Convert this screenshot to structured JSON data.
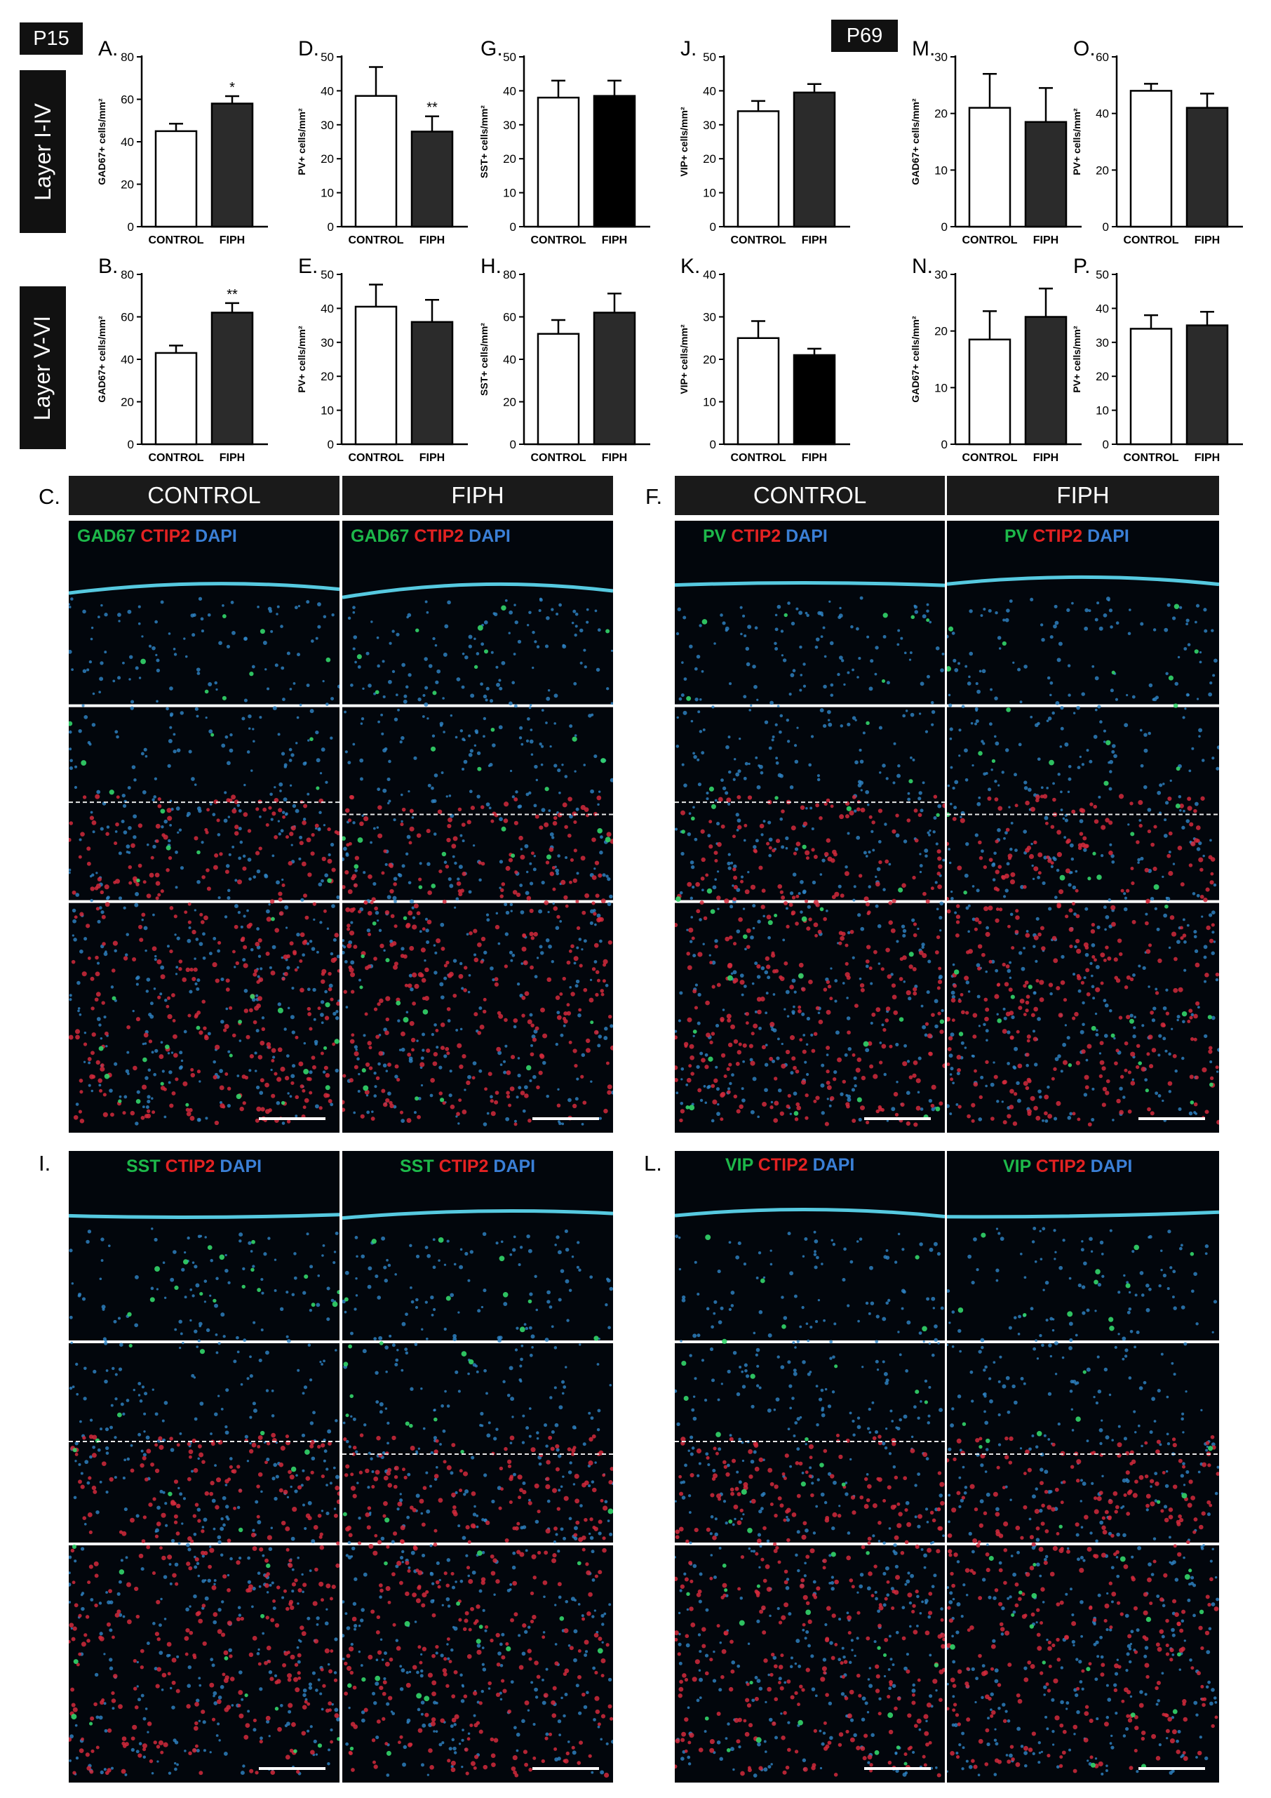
{
  "tags": {
    "p15": "P15",
    "p69": "P69",
    "layer_upper": "Layer I-IV",
    "layer_lower": "Layer V-VI"
  },
  "chart_data": [
    {
      "id": "A",
      "panel_label": "A.",
      "type": "bar",
      "categories": [
        "CONTROL",
        "FIPH"
      ],
      "values": [
        45,
        58
      ],
      "errors": [
        3.5,
        3.5
      ],
      "ylabel": "GAD67+ cells/mm²",
      "ylim": [
        0,
        80
      ],
      "yticks": [
        0,
        20,
        40,
        60,
        80
      ],
      "colors": [
        "#ffffff",
        "#2b2b2b"
      ],
      "significance": [
        "",
        "*"
      ]
    },
    {
      "id": "B",
      "panel_label": "B.",
      "type": "bar",
      "categories": [
        "CONTROL",
        "FIPH"
      ],
      "values": [
        43,
        62
      ],
      "errors": [
        3.5,
        4.5
      ],
      "ylabel": "GAD67+ cells/mm²",
      "ylim": [
        0,
        80
      ],
      "yticks": [
        0,
        20,
        40,
        60,
        80
      ],
      "colors": [
        "#ffffff",
        "#2b2b2b"
      ],
      "significance": [
        "",
        "**"
      ]
    },
    {
      "id": "D",
      "panel_label": "D.",
      "type": "bar",
      "categories": [
        "CONTROL",
        "FIPH"
      ],
      "values": [
        38.5,
        28
      ],
      "errors": [
        8.5,
        4.5
      ],
      "ylabel": "PV+ cells/mm²",
      "ylim": [
        0,
        50
      ],
      "yticks": [
        0,
        10,
        20,
        30,
        40,
        50
      ],
      "colors": [
        "#ffffff",
        "#2b2b2b"
      ],
      "significance": [
        "",
        "**"
      ]
    },
    {
      "id": "E",
      "panel_label": "E.",
      "type": "bar",
      "categories": [
        "CONTROL",
        "FIPH"
      ],
      "values": [
        40.5,
        36
      ],
      "errors": [
        6.5,
        6.5
      ],
      "ylabel": "PV+ cells/mm²",
      "ylim": [
        0,
        50
      ],
      "yticks": [
        0,
        10,
        20,
        30,
        40,
        50
      ],
      "colors": [
        "#ffffff",
        "#2b2b2b"
      ],
      "significance": [
        "",
        ""
      ]
    },
    {
      "id": "G",
      "panel_label": "G.",
      "type": "bar",
      "categories": [
        "CONTROL",
        "FIPH"
      ],
      "values": [
        38,
        38.5
      ],
      "errors": [
        5,
        4.5
      ],
      "ylabel": "SST+ cells/mm²",
      "ylim": [
        0,
        50
      ],
      "yticks": [
        0,
        10,
        20,
        30,
        40,
        50
      ],
      "colors": [
        "#ffffff",
        "#000000"
      ],
      "significance": [
        "",
        ""
      ]
    },
    {
      "id": "H",
      "panel_label": "H.",
      "type": "bar",
      "categories": [
        "CONTROL",
        "FIPH"
      ],
      "values": [
        52,
        62
      ],
      "errors": [
        6.5,
        9
      ],
      "ylabel": "SST+ cells/mm²",
      "ylim": [
        0,
        80
      ],
      "yticks": [
        0,
        20,
        40,
        60,
        80
      ],
      "colors": [
        "#ffffff",
        "#2b2b2b"
      ],
      "significance": [
        "",
        ""
      ]
    },
    {
      "id": "J",
      "panel_label": "J.",
      "type": "bar",
      "categories": [
        "CONTROL",
        "FIPH"
      ],
      "values": [
        34,
        39.5
      ],
      "errors": [
        3,
        2.5
      ],
      "ylabel": "VIP+ cells/mm²",
      "ylim": [
        0,
        50
      ],
      "yticks": [
        0,
        10,
        20,
        30,
        40,
        50
      ],
      "colors": [
        "#ffffff",
        "#2b2b2b"
      ],
      "significance": [
        "",
        ""
      ]
    },
    {
      "id": "K",
      "panel_label": "K.",
      "type": "bar",
      "categories": [
        "CONTROL",
        "FIPH"
      ],
      "values": [
        25,
        21
      ],
      "errors": [
        4,
        1.5
      ],
      "ylabel": "VIP+ cells/mm²",
      "ylim": [
        0,
        40
      ],
      "yticks": [
        0,
        10,
        20,
        30,
        40
      ],
      "colors": [
        "#ffffff",
        "#000000"
      ],
      "significance": [
        "",
        ""
      ]
    },
    {
      "id": "M",
      "panel_label": "M.",
      "type": "bar",
      "categories": [
        "CONTROL",
        "FIPH"
      ],
      "values": [
        21,
        18.5
      ],
      "errors": [
        6,
        6
      ],
      "ylabel": "GAD67+ cells/mm²",
      "ylim": [
        0,
        30
      ],
      "yticks": [
        0,
        10,
        20,
        30
      ],
      "colors": [
        "#ffffff",
        "#2b2b2b"
      ],
      "significance": [
        "",
        ""
      ]
    },
    {
      "id": "N",
      "panel_label": "N.",
      "type": "bar",
      "categories": [
        "CONTROL",
        "FIPH"
      ],
      "values": [
        18.5,
        22.5
      ],
      "errors": [
        5,
        5
      ],
      "ylabel": "GAD67+ cells/mm²",
      "ylim": [
        0,
        30
      ],
      "yticks": [
        0,
        10,
        20,
        30
      ],
      "colors": [
        "#ffffff",
        "#2b2b2b"
      ],
      "significance": [
        "",
        ""
      ]
    },
    {
      "id": "O",
      "panel_label": "O.",
      "type": "bar",
      "categories": [
        "CONTROL",
        "FIPH"
      ],
      "values": [
        48,
        42
      ],
      "errors": [
        2.5,
        5
      ],
      "ylabel": "PV+ cells/mm²",
      "ylim": [
        0,
        60
      ],
      "yticks": [
        0,
        20,
        40,
        60
      ],
      "colors": [
        "#ffffff",
        "#2b2b2b"
      ],
      "significance": [
        "",
        ""
      ]
    },
    {
      "id": "P",
      "panel_label": "P.",
      "type": "bar",
      "categories": [
        "CONTROL",
        "FIPH"
      ],
      "values": [
        34,
        35
      ],
      "errors": [
        4,
        4
      ],
      "ylabel": "PV+ cells/mm²",
      "ylim": [
        0,
        50
      ],
      "yticks": [
        0,
        10,
        20,
        30,
        40,
        50
      ],
      "colors": [
        "#ffffff",
        "#2b2b2b"
      ],
      "significance": [
        "",
        ""
      ]
    }
  ],
  "image_panels": {
    "C": {
      "label": "C.",
      "headers": [
        "CONTROL",
        "FIPH"
      ],
      "stain_left": [
        "GAD67",
        "CTIP2",
        "DAPI"
      ],
      "stain_right": [
        "GAD67",
        "CTIP2",
        "DAPI"
      ]
    },
    "F": {
      "label": "F.",
      "headers": [
        "CONTROL",
        "FIPH"
      ],
      "stain_left": [
        "PV",
        "CTIP2",
        "DAPI"
      ],
      "stain_right": [
        "PV",
        "CTIP2",
        "DAPI"
      ]
    },
    "I": {
      "label": "I.",
      "stain_left": [
        "SST",
        "CTIP2",
        "DAPI"
      ],
      "stain_right": [
        "SST",
        "CTIP2",
        "DAPI"
      ]
    },
    "L": {
      "label": "L.",
      "stain_left": [
        "VIP",
        "CTIP2",
        "DAPI"
      ],
      "stain_right": [
        "VIP",
        "CTIP2",
        "DAPI"
      ]
    }
  },
  "stain_colors": {
    "marker": "#1db84a",
    "ctip2": "#e32222",
    "dapi": "#3a7fd6"
  }
}
